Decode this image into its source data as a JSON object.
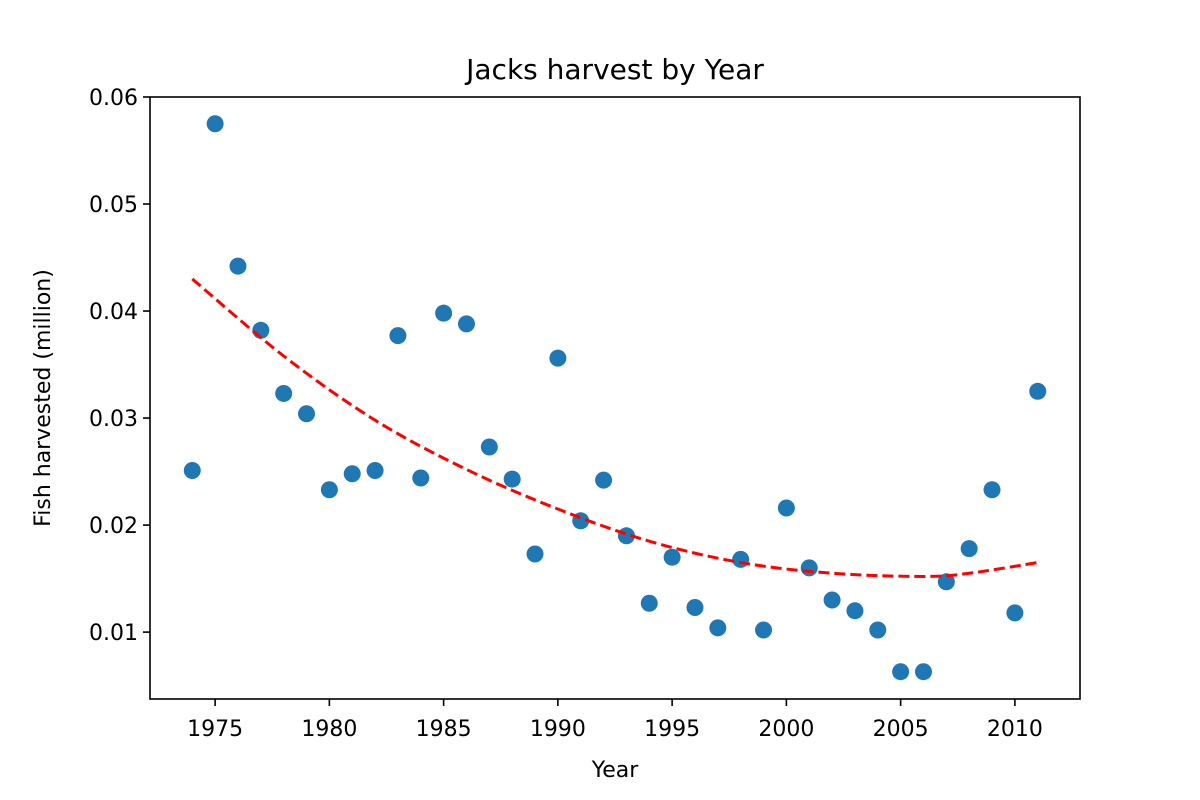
{
  "chart_data": {
    "type": "scatter",
    "title": "Jacks harvest by Year",
    "xlabel": "Year",
    "ylabel": "Fish harvested (million)",
    "xlim": [
      1972.15,
      2012.85
    ],
    "ylim": [
      0.00375,
      0.06
    ],
    "x_ticks": [
      1975,
      1980,
      1985,
      1990,
      1995,
      2000,
      2005,
      2010
    ],
    "x_tick_labels": [
      "1975",
      "1980",
      "1985",
      "1990",
      "1995",
      "2000",
      "2005",
      "2010"
    ],
    "y_ticks": [
      0.01,
      0.02,
      0.03,
      0.04,
      0.05,
      0.06
    ],
    "y_tick_labels": [
      "0.01",
      "0.02",
      "0.03",
      "0.04",
      "0.05",
      "0.06"
    ],
    "grid": false,
    "colors": {
      "points": "#1f77b4",
      "trend": "#ff0000"
    },
    "points": {
      "x": [
        1974,
        1975,
        1976,
        1977,
        1978,
        1979,
        1980,
        1981,
        1982,
        1983,
        1984,
        1985,
        1986,
        1987,
        1988,
        1989,
        1990,
        1991,
        1992,
        1993,
        1994,
        1995,
        1996,
        1997,
        1998,
        1999,
        2000,
        2001,
        2002,
        2003,
        2004,
        2005,
        2006,
        2007,
        2008,
        2009,
        2010,
        2011
      ],
      "y": [
        0.0251,
        0.0575,
        0.0442,
        0.0382,
        0.0323,
        0.0304,
        0.0233,
        0.0248,
        0.0251,
        0.0377,
        0.0244,
        0.0398,
        0.0388,
        0.0273,
        0.0243,
        0.0173,
        0.0356,
        0.0204,
        0.0242,
        0.019,
        0.0127,
        0.017,
        0.0123,
        0.0104,
        0.0168,
        0.0102,
        0.0216,
        0.016,
        0.013,
        0.012,
        0.0102,
        0.0063,
        0.0063,
        0.0147,
        0.0178,
        0.0233,
        0.0118,
        0.0325
      ]
    },
    "trend": {
      "style": "dashed",
      "x": [
        1974,
        1978,
        1982,
        1986,
        1990,
        1994,
        1998,
        2002,
        2006,
        2008,
        2011
      ],
      "y": [
        0.043,
        0.0358,
        0.0298,
        0.0252,
        0.0215,
        0.0185,
        0.0165,
        0.0155,
        0.0152,
        0.0155,
        0.0165
      ]
    }
  }
}
